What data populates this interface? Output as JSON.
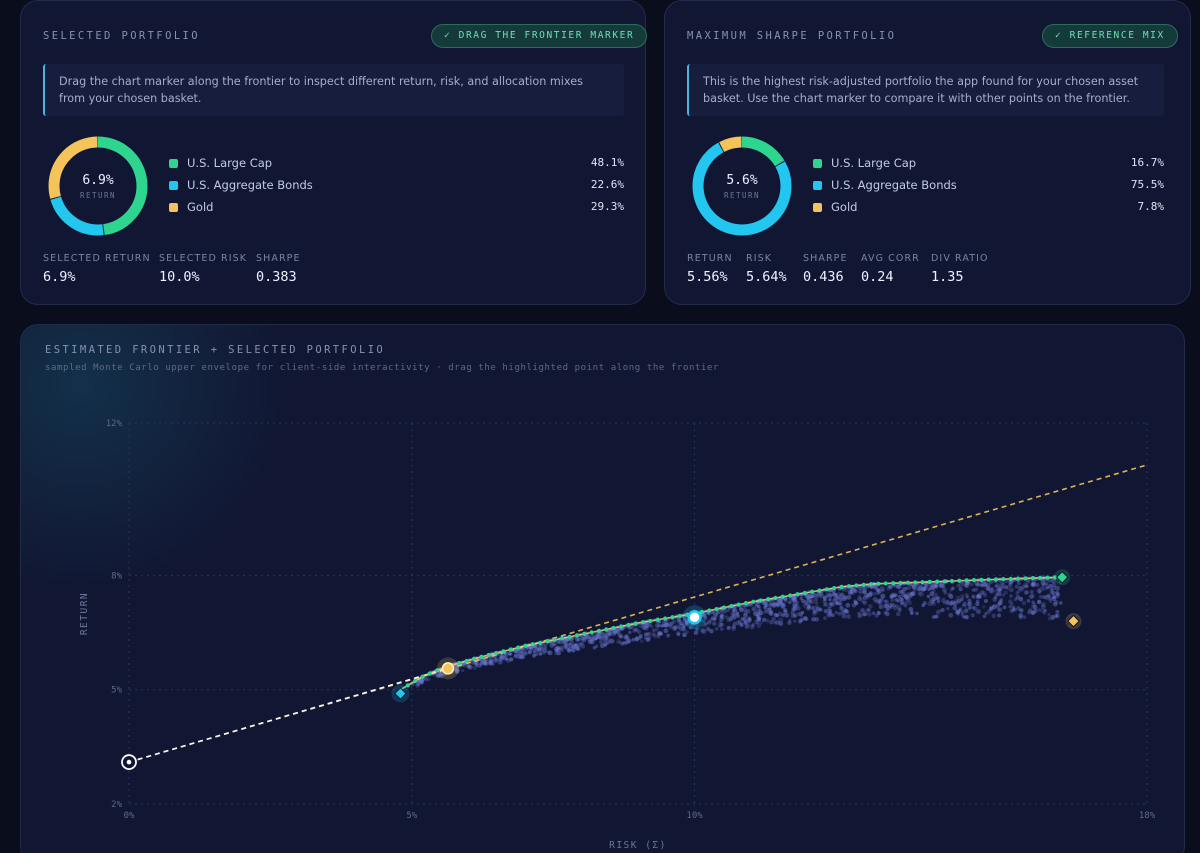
{
  "selected": {
    "title": "SELECTED PORTFOLIO",
    "badge": "✓ DRAG THE FRONTIER MARKER",
    "note": "Drag the chart marker along the frontier to inspect different return, risk, and allocation mixes from your chosen basket.",
    "donut_value": "6.9%",
    "donut_label": "RETURN",
    "allocations": [
      {
        "name": "U.S. Large Cap",
        "pct": "48.1%",
        "weight": 48.1,
        "color": "#2ed58f"
      },
      {
        "name": "U.S. Aggregate Bonds",
        "pct": "22.6%",
        "weight": 22.6,
        "color": "#22c6ee"
      },
      {
        "name": "Gold",
        "pct": "29.3%",
        "weight": 29.3,
        "color": "#f4c35a"
      }
    ],
    "stats": [
      {
        "label": "SELECTED RETURN",
        "value": "6.9%"
      },
      {
        "label": "SELECTED RISK",
        "value": "10.0%"
      },
      {
        "label": "SHARPE",
        "value": "0.383"
      }
    ]
  },
  "max_sharpe": {
    "title": "MAXIMUM SHARPE PORTFOLIO",
    "badge": "✓ REFERENCE MIX",
    "note": "This is the highest risk-adjusted portfolio the app found for your chosen asset basket. Use the chart marker to compare it with other points on the frontier.",
    "donut_value": "5.6%",
    "donut_label": "RETURN",
    "allocations": [
      {
        "name": "U.S. Large Cap",
        "pct": "16.7%",
        "weight": 16.7,
        "color": "#2ed58f"
      },
      {
        "name": "U.S. Aggregate Bonds",
        "pct": "75.5%",
        "weight": 75.5,
        "color": "#22c6ee"
      },
      {
        "name": "Gold",
        "pct": "7.8%",
        "weight": 7.8,
        "color": "#f4c35a"
      }
    ],
    "stats": [
      {
        "label": "RETURN",
        "value": "5.56%"
      },
      {
        "label": "RISK",
        "value": "5.64%"
      },
      {
        "label": "SHARPE",
        "value": "0.436"
      },
      {
        "label": "AVG CORR",
        "value": "0.24"
      },
      {
        "label": "DIV RATIO",
        "value": "1.35"
      }
    ]
  },
  "chart_data": {
    "type": "scatter",
    "title": "ESTIMATED FRONTIER + SELECTED PORTFOLIO",
    "subtitle": "sampled Monte Carlo upper envelope for client-side interactivity · drag the highlighted point along the frontier",
    "xlabel": "RISK (Σ)",
    "ylabel": "RETURN",
    "xlim": [
      0,
      18
    ],
    "ylim": [
      2,
      12
    ],
    "x_ticks": [
      {
        "value": 0,
        "label": "0%"
      },
      {
        "value": 5,
        "label": "5%"
      },
      {
        "value": 10,
        "label": "10%"
      },
      {
        "value": 18,
        "label": "18%"
      }
    ],
    "y_ticks": [
      {
        "value": 2,
        "label": "2%"
      },
      {
        "value": 5,
        "label": "5%"
      },
      {
        "value": 8,
        "label": "8%"
      },
      {
        "value": 12,
        "label": "12%"
      }
    ],
    "grid": true,
    "capital_market_line": {
      "x": [
        0,
        18
      ],
      "y": [
        3.1,
        10.9
      ]
    },
    "frontier": {
      "x": [
        4.8,
        5.2,
        5.6,
        6.2,
        7.0,
        8.0,
        9.0,
        10.0,
        11.0,
        12.0,
        12.6,
        13.2,
        14.0,
        15.0,
        16.0,
        16.5
      ],
      "y": [
        5.0,
        5.35,
        5.6,
        5.85,
        6.15,
        6.45,
        6.75,
        7.0,
        7.3,
        7.55,
        7.7,
        7.78,
        7.82,
        7.88,
        7.93,
        7.95
      ]
    },
    "cloud_bounds": {
      "x_min": 5.0,
      "x_max": 16.5
    },
    "risk_free": {
      "x": 0,
      "y": 3.1
    },
    "min_variance": {
      "x": 4.8,
      "y": 4.9
    },
    "max_sharpe": {
      "x": 5.64,
      "y": 5.56
    },
    "selected": {
      "x": 10.0,
      "y": 6.9
    },
    "max_return": {
      "x": 16.5,
      "y": 7.95
    },
    "single_asset_gold": {
      "x": 16.7,
      "y": 6.8
    },
    "colors": {
      "frontier": "#2ed58f",
      "cml": "#f4c35a",
      "cloud": "#6c78d6",
      "selected": "#22c6ee",
      "max_sharpe": "#f4c35a"
    }
  }
}
